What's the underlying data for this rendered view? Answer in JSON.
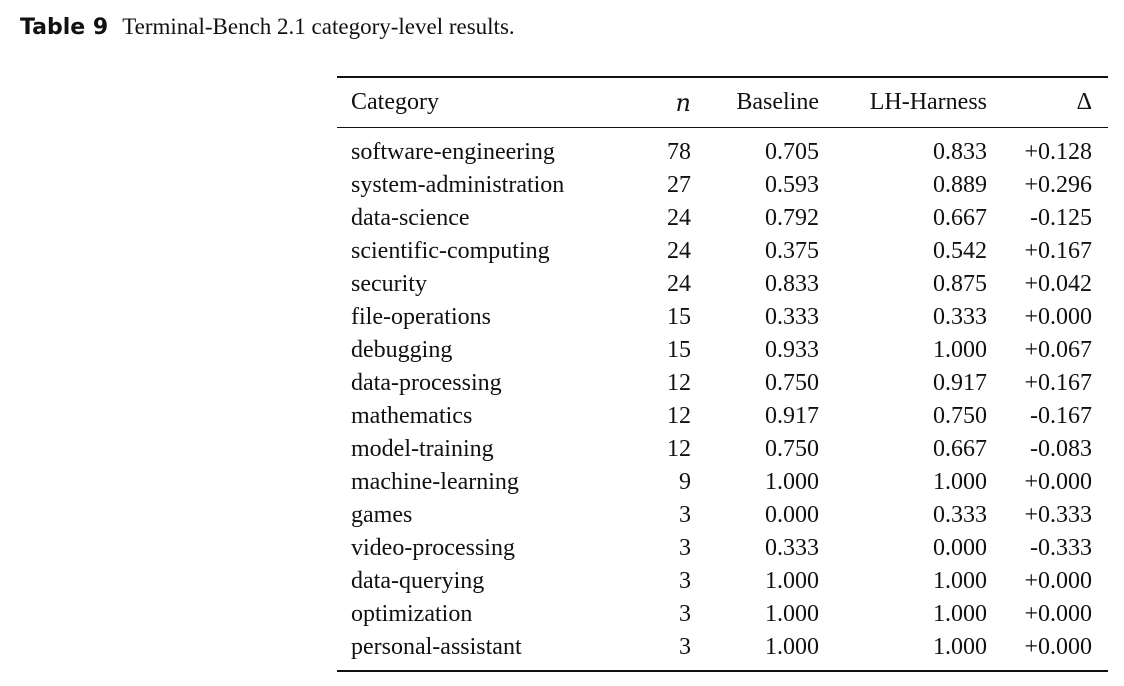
{
  "caption": {
    "label": "Table 9",
    "text": "Terminal-Bench 2.1 category-level results."
  },
  "table": {
    "headers": {
      "category": "Category",
      "n": "n",
      "baseline": "Baseline",
      "lh_harness": "LH-Harness",
      "delta": "Δ"
    },
    "rows": [
      {
        "category": "software-engineering",
        "n": "78",
        "baseline": "0.705",
        "lh_harness": "0.833",
        "delta": "+0.128"
      },
      {
        "category": "system-administration",
        "n": "27",
        "baseline": "0.593",
        "lh_harness": "0.889",
        "delta": "+0.296"
      },
      {
        "category": "data-science",
        "n": "24",
        "baseline": "0.792",
        "lh_harness": "0.667",
        "delta": "-0.125"
      },
      {
        "category": "scientific-computing",
        "n": "24",
        "baseline": "0.375",
        "lh_harness": "0.542",
        "delta": "+0.167"
      },
      {
        "category": "security",
        "n": "24",
        "baseline": "0.833",
        "lh_harness": "0.875",
        "delta": "+0.042"
      },
      {
        "category": "file-operations",
        "n": "15",
        "baseline": "0.333",
        "lh_harness": "0.333",
        "delta": "+0.000"
      },
      {
        "category": "debugging",
        "n": "15",
        "baseline": "0.933",
        "lh_harness": "1.000",
        "delta": "+0.067"
      },
      {
        "category": "data-processing",
        "n": "12",
        "baseline": "0.750",
        "lh_harness": "0.917",
        "delta": "+0.167"
      },
      {
        "category": "mathematics",
        "n": "12",
        "baseline": "0.917",
        "lh_harness": "0.750",
        "delta": "-0.167"
      },
      {
        "category": "model-training",
        "n": "12",
        "baseline": "0.750",
        "lh_harness": "0.667",
        "delta": "-0.083"
      },
      {
        "category": "machine-learning",
        "n": "9",
        "baseline": "1.000",
        "lh_harness": "1.000",
        "delta": "+0.000"
      },
      {
        "category": "games",
        "n": "3",
        "baseline": "0.000",
        "lh_harness": "0.333",
        "delta": "+0.333"
      },
      {
        "category": "video-processing",
        "n": "3",
        "baseline": "0.333",
        "lh_harness": "0.000",
        "delta": "-0.333"
      },
      {
        "category": "data-querying",
        "n": "3",
        "baseline": "1.000",
        "lh_harness": "1.000",
        "delta": "+0.000"
      },
      {
        "category": "optimization",
        "n": "3",
        "baseline": "1.000",
        "lh_harness": "1.000",
        "delta": "+0.000"
      },
      {
        "category": "personal-assistant",
        "n": "3",
        "baseline": "1.000",
        "lh_harness": "1.000",
        "delta": "+0.000"
      }
    ]
  }
}
